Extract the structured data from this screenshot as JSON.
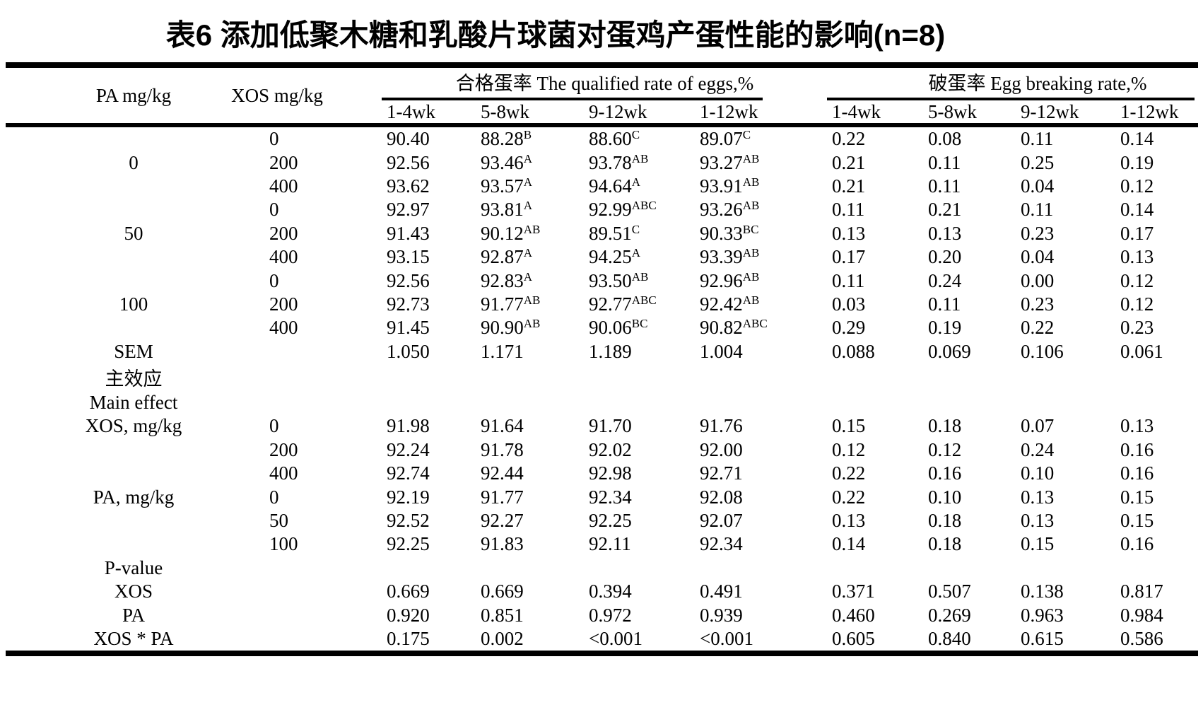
{
  "title": "表6 添加低聚木糖和乳酸片球菌对蛋鸡产蛋性能的影响(n=8)",
  "colors": {
    "text": "#000000",
    "background": "#ffffff",
    "rule": "#000000"
  },
  "table": {
    "col_headers": {
      "pa": "PA mg/kg",
      "xos": "XOS mg/kg"
    },
    "groups": [
      {
        "label": "合格蛋率 The qualified rate of eggs,%"
      },
      {
        "label": "破蛋率 Egg breaking rate,%"
      }
    ],
    "subheaders": [
      "1-4wk",
      "5-8wk",
      "9-12wk",
      "1-12wk",
      "1-4wk",
      "5-8wk",
      "9-12wk",
      "1-12wk"
    ],
    "rows": [
      {
        "pa": "",
        "xos": "0",
        "q": [
          {
            "v": "90.40"
          },
          {
            "v": "88.28",
            "s": "B"
          },
          {
            "v": "88.60",
            "s": "C"
          },
          {
            "v": "89.07",
            "s": "C"
          }
        ],
        "b": [
          {
            "v": "0.22"
          },
          {
            "v": "0.08"
          },
          {
            "v": "0.11"
          },
          {
            "v": "0.14"
          }
        ]
      },
      {
        "pa": "0",
        "xos": "200",
        "q": [
          {
            "v": "92.56"
          },
          {
            "v": "93.46",
            "s": "A"
          },
          {
            "v": "93.78",
            "s": "AB"
          },
          {
            "v": "93.27",
            "s": "AB"
          }
        ],
        "b": [
          {
            "v": "0.21"
          },
          {
            "v": "0.11"
          },
          {
            "v": "0.25"
          },
          {
            "v": "0.19"
          }
        ]
      },
      {
        "pa": "",
        "xos": "400",
        "q": [
          {
            "v": "93.62"
          },
          {
            "v": "93.57",
            "s": "A"
          },
          {
            "v": "94.64",
            "s": "A"
          },
          {
            "v": "93.91",
            "s": "AB"
          }
        ],
        "b": [
          {
            "v": "0.21"
          },
          {
            "v": "0.11"
          },
          {
            "v": "0.04"
          },
          {
            "v": "0.12"
          }
        ]
      },
      {
        "pa": "",
        "xos": "0",
        "q": [
          {
            "v": "92.97"
          },
          {
            "v": "93.81",
            "s": "A"
          },
          {
            "v": "92.99",
            "s": "ABC"
          },
          {
            "v": "93.26",
            "s": "AB"
          }
        ],
        "b": [
          {
            "v": "0.11"
          },
          {
            "v": "0.21"
          },
          {
            "v": "0.11"
          },
          {
            "v": "0.14"
          }
        ]
      },
      {
        "pa": "50",
        "xos": "200",
        "q": [
          {
            "v": "91.43"
          },
          {
            "v": "90.12",
            "s": "AB"
          },
          {
            "v": "89.51",
            "s": "C"
          },
          {
            "v": "90.33",
            "s": "BC"
          }
        ],
        "b": [
          {
            "v": "0.13"
          },
          {
            "v": "0.13"
          },
          {
            "v": "0.23"
          },
          {
            "v": "0.17"
          }
        ]
      },
      {
        "pa": "",
        "xos": "400",
        "q": [
          {
            "v": "93.15"
          },
          {
            "v": "92.87",
            "s": "A"
          },
          {
            "v": "94.25",
            "s": "A"
          },
          {
            "v": "93.39",
            "s": "AB"
          }
        ],
        "b": [
          {
            "v": "0.17"
          },
          {
            "v": "0.20"
          },
          {
            "v": "0.04"
          },
          {
            "v": "0.13"
          }
        ]
      },
      {
        "pa": "",
        "xos": "0",
        "q": [
          {
            "v": "92.56"
          },
          {
            "v": "92.83",
            "s": "A"
          },
          {
            "v": "93.50",
            "s": "AB"
          },
          {
            "v": "92.96",
            "s": "AB"
          }
        ],
        "b": [
          {
            "v": "0.11"
          },
          {
            "v": "0.24"
          },
          {
            "v": "0.00"
          },
          {
            "v": "0.12"
          }
        ]
      },
      {
        "pa": "100",
        "xos": "200",
        "q": [
          {
            "v": "92.73"
          },
          {
            "v": "91.77",
            "s": "AB"
          },
          {
            "v": "92.77",
            "s": "ABC"
          },
          {
            "v": "92.42",
            "s": "AB"
          }
        ],
        "b": [
          {
            "v": "0.03"
          },
          {
            "v": "0.11"
          },
          {
            "v": "0.23"
          },
          {
            "v": "0.12"
          }
        ]
      },
      {
        "pa": "",
        "xos": "400",
        "q": [
          {
            "v": "91.45"
          },
          {
            "v": "90.90",
            "s": "AB"
          },
          {
            "v": "90.06",
            "s": "BC"
          },
          {
            "v": "90.82",
            "s": "ABC"
          }
        ],
        "b": [
          {
            "v": "0.29"
          },
          {
            "v": "0.19"
          },
          {
            "v": "0.22"
          },
          {
            "v": "0.23"
          }
        ]
      },
      {
        "pa": "SEM",
        "xos": "",
        "q": [
          {
            "v": "1.050"
          },
          {
            "v": "1.171"
          },
          {
            "v": "1.189"
          },
          {
            "v": "1.004"
          }
        ],
        "b": [
          {
            "v": "0.088"
          },
          {
            "v": "0.069"
          },
          {
            "v": "0.106"
          },
          {
            "v": "0.061"
          }
        ]
      },
      {
        "pa": "主效应",
        "xos": "",
        "q": [],
        "b": []
      },
      {
        "pa": "Main effect",
        "xos": "",
        "q": [],
        "b": []
      },
      {
        "pa": "XOS, mg/kg",
        "xos": "0",
        "q": [
          {
            "v": "91.98"
          },
          {
            "v": "91.64"
          },
          {
            "v": "91.70"
          },
          {
            "v": "91.76"
          }
        ],
        "b": [
          {
            "v": "0.15"
          },
          {
            "v": "0.18"
          },
          {
            "v": "0.07"
          },
          {
            "v": "0.13"
          }
        ]
      },
      {
        "pa": "",
        "xos": "200",
        "q": [
          {
            "v": "92.24"
          },
          {
            "v": "91.78"
          },
          {
            "v": "92.02"
          },
          {
            "v": "92.00"
          }
        ],
        "b": [
          {
            "v": "0.12"
          },
          {
            "v": "0.12"
          },
          {
            "v": "0.24"
          },
          {
            "v": "0.16"
          }
        ]
      },
      {
        "pa": "",
        "xos": "400",
        "q": [
          {
            "v": "92.74"
          },
          {
            "v": "92.44"
          },
          {
            "v": "92.98"
          },
          {
            "v": "92.71"
          }
        ],
        "b": [
          {
            "v": "0.22"
          },
          {
            "v": "0.16"
          },
          {
            "v": "0.10"
          },
          {
            "v": "0.16"
          }
        ]
      },
      {
        "pa": "PA, mg/kg",
        "xos": "0",
        "q": [
          {
            "v": "92.19"
          },
          {
            "v": "91.77"
          },
          {
            "v": "92.34"
          },
          {
            "v": "92.08"
          }
        ],
        "b": [
          {
            "v": "0.22"
          },
          {
            "v": "0.10"
          },
          {
            "v": "0.13"
          },
          {
            "v": "0.15"
          }
        ]
      },
      {
        "pa": "",
        "xos": "50",
        "q": [
          {
            "v": "92.52"
          },
          {
            "v": "92.27"
          },
          {
            "v": "92.25"
          },
          {
            "v": "92.07"
          }
        ],
        "b": [
          {
            "v": "0.13"
          },
          {
            "v": "0.18"
          },
          {
            "v": "0.13"
          },
          {
            "v": "0.15"
          }
        ]
      },
      {
        "pa": "",
        "xos": "100",
        "q": [
          {
            "v": "92.25"
          },
          {
            "v": "91.83"
          },
          {
            "v": "92.11"
          },
          {
            "v": "92.34"
          }
        ],
        "b": [
          {
            "v": "0.14"
          },
          {
            "v": "0.18"
          },
          {
            "v": "0.15"
          },
          {
            "v": "0.16"
          }
        ]
      },
      {
        "pa": "P-value",
        "xos": "",
        "q": [],
        "b": []
      },
      {
        "pa": "XOS",
        "xos": "",
        "q": [
          {
            "v": "0.669"
          },
          {
            "v": "0.669"
          },
          {
            "v": "0.394"
          },
          {
            "v": "0.491"
          }
        ],
        "b": [
          {
            "v": "0.371"
          },
          {
            "v": "0.507"
          },
          {
            "v": "0.138"
          },
          {
            "v": "0.817"
          }
        ]
      },
      {
        "pa": "PA",
        "xos": "",
        "q": [
          {
            "v": "0.920"
          },
          {
            "v": "0.851"
          },
          {
            "v": "0.972"
          },
          {
            "v": "0.939"
          }
        ],
        "b": [
          {
            "v": "0.460"
          },
          {
            "v": "0.269"
          },
          {
            "v": "0.963"
          },
          {
            "v": "0.984"
          }
        ]
      },
      {
        "pa": "XOS * PA",
        "xos": "",
        "q": [
          {
            "v": "0.175"
          },
          {
            "v": "0.002"
          },
          {
            "v": "<0.001"
          },
          {
            "v": "<0.001"
          }
        ],
        "b": [
          {
            "v": "0.605"
          },
          {
            "v": "0.840"
          },
          {
            "v": "0.615"
          },
          {
            "v": "0.586"
          }
        ]
      }
    ]
  }
}
